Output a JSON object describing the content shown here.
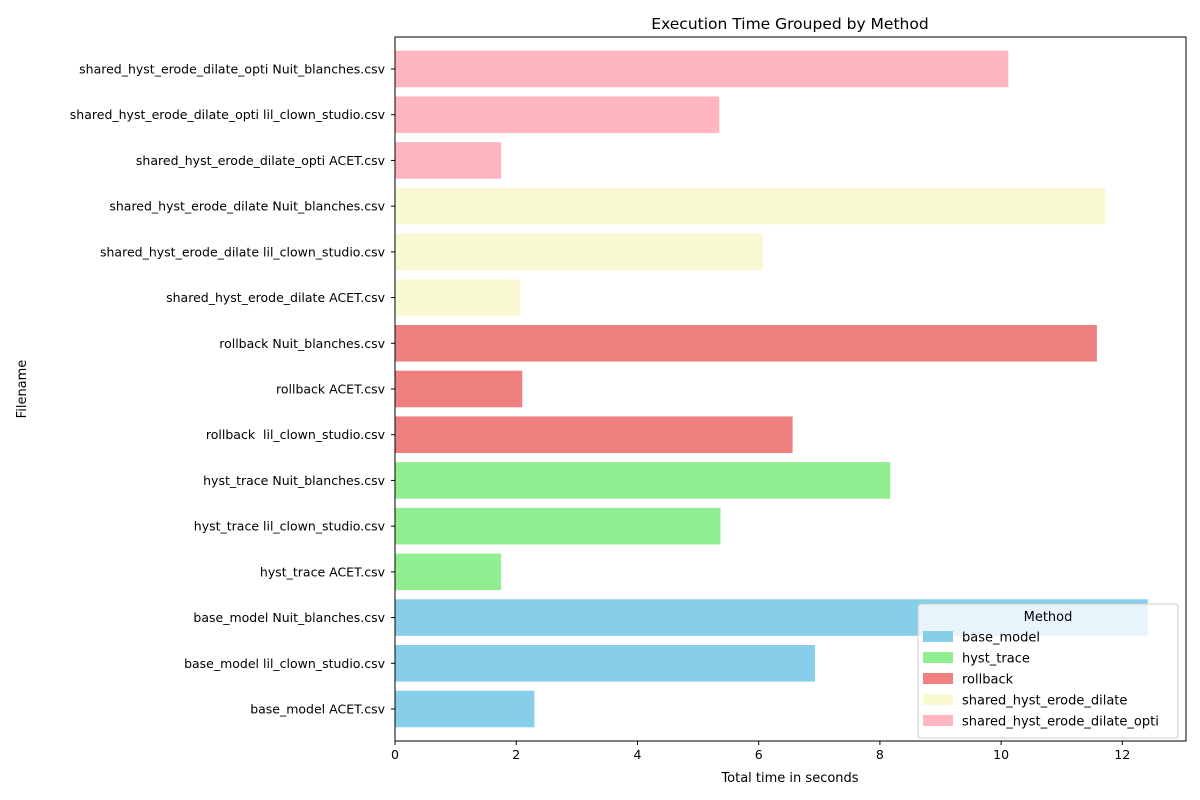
{
  "chart_data": {
    "type": "bar",
    "orientation": "horizontal",
    "title": "Execution Time Grouped by Method",
    "xlabel": "Total time in seconds",
    "ylabel": "Filename",
    "xlim": [
      0,
      13.05
    ],
    "xticks": [
      0,
      2,
      4,
      6,
      8,
      10,
      12
    ],
    "grid": false,
    "legend": {
      "title": "Method",
      "placement": "lower-right",
      "entries": [
        {
          "name": "base_model",
          "color": "#87ceeb"
        },
        {
          "name": "hyst_trace",
          "color": "#90ee90"
        },
        {
          "name": "rollback",
          "color": "#f08080"
        },
        {
          "name": "shared_hyst_erode_dilate",
          "color": "#fafad2"
        },
        {
          "name": "shared_hyst_erode_dilate_opti",
          "color": "#ffb6c1"
        }
      ]
    },
    "bars": [
      {
        "label": "base_model ACET.csv",
        "value": 2.3,
        "method": "base_model"
      },
      {
        "label": "base_model lil_clown_studio.csv",
        "value": 6.93,
        "method": "base_model"
      },
      {
        "label": "base_model Nuit_blanches.csv",
        "value": 12.42,
        "method": "base_model"
      },
      {
        "label": "hyst_trace ACET.csv",
        "value": 1.75,
        "method": "hyst_trace"
      },
      {
        "label": "hyst_trace lil_clown_studio.csv",
        "value": 5.37,
        "method": "hyst_trace"
      },
      {
        "label": "hyst_trace Nuit_blanches.csv",
        "value": 8.17,
        "method": "hyst_trace"
      },
      {
        "label": "rollback  lil_clown_studio.csv",
        "value": 6.56,
        "method": "rollback"
      },
      {
        "label": "rollback ACET.csv",
        "value": 2.1,
        "method": "rollback"
      },
      {
        "label": "rollback Nuit_blanches.csv",
        "value": 11.58,
        "method": "rollback"
      },
      {
        "label": "shared_hyst_erode_dilate ACET.csv",
        "value": 2.06,
        "method": "shared_hyst_erode_dilate"
      },
      {
        "label": "shared_hyst_erode_dilate lil_clown_studio.csv",
        "value": 6.07,
        "method": "shared_hyst_erode_dilate"
      },
      {
        "label": "shared_hyst_erode_dilate Nuit_blanches.csv",
        "value": 11.72,
        "method": "shared_hyst_erode_dilate"
      },
      {
        "label": "shared_hyst_erode_dilate_opti ACET.csv",
        "value": 1.75,
        "method": "shared_hyst_erode_dilate_opti"
      },
      {
        "label": "shared_hyst_erode_dilate_opti lil_clown_studio.csv",
        "value": 5.35,
        "method": "shared_hyst_erode_dilate_opti"
      },
      {
        "label": "shared_hyst_erode_dilate_opti Nuit_blanches.csv",
        "value": 10.12,
        "method": "shared_hyst_erode_dilate_opti"
      }
    ]
  }
}
